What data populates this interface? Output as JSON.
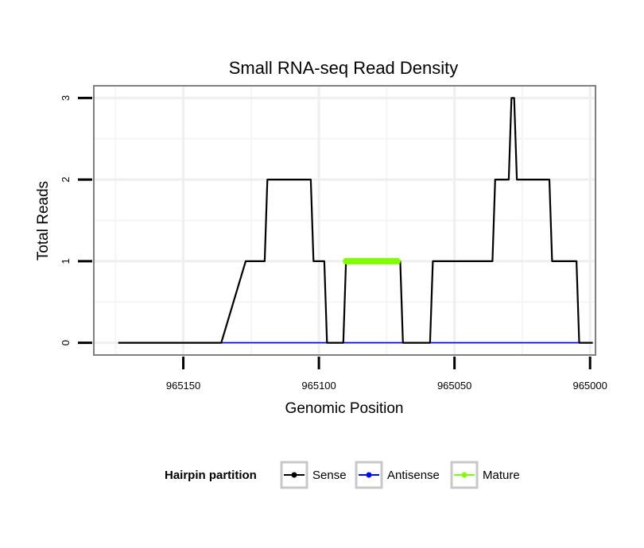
{
  "chart_data": {
    "type": "line",
    "title": "Small RNA-seq Read Density",
    "xlabel": "Genomic Position",
    "ylabel": "Total Reads",
    "x_reversed": true,
    "xlim": [
      965183,
      964998
    ],
    "ylim": [
      -0.15,
      3.15
    ],
    "xticks": [
      965150,
      965100,
      965050,
      965000
    ],
    "xtick_labels": [
      "965150",
      "965100",
      "965050",
      "965000"
    ],
    "yticks": [
      0,
      1,
      2,
      3
    ],
    "ytick_labels": [
      "0",
      "1",
      "2",
      "3"
    ],
    "grid": true,
    "legend": {
      "title": "Hairpin partition",
      "position": "bottom",
      "entries": [
        {
          "name": "Sense",
          "color": "#000000"
        },
        {
          "name": "Antisense",
          "color": "#0000ff"
        },
        {
          "name": "Mature",
          "color": "#7fff00"
        }
      ]
    },
    "series": [
      {
        "name": "Sense",
        "color": "#000000",
        "x": [
          965174,
          965136,
          965127,
          965120,
          965119,
          965112,
          965111,
          965103,
          965102,
          965098,
          965097,
          965091,
          965090,
          965081,
          965080,
          965070,
          965069,
          965059,
          965058,
          965052,
          965051,
          965036,
          965035,
          965030,
          965029,
          965028,
          965027,
          965024,
          965023,
          965015,
          965014,
          965005,
          965004,
          964999
        ],
        "y": [
          0,
          0,
          1,
          1,
          2,
          2,
          2,
          2,
          1,
          1,
          0,
          0,
          1,
          1,
          1,
          1,
          0,
          0,
          1,
          1,
          1,
          1,
          2,
          2,
          3,
          3,
          2,
          2,
          2,
          2,
          1,
          1,
          0,
          0
        ]
      },
      {
        "name": "Antisense",
        "color": "#0000ff",
        "x": [
          965136,
          965004
        ],
        "y": [
          0,
          0
        ]
      },
      {
        "name": "Mature",
        "color": "#7fff00",
        "x": [
          965090,
          965071
        ],
        "y": [
          1,
          1
        ]
      }
    ]
  }
}
